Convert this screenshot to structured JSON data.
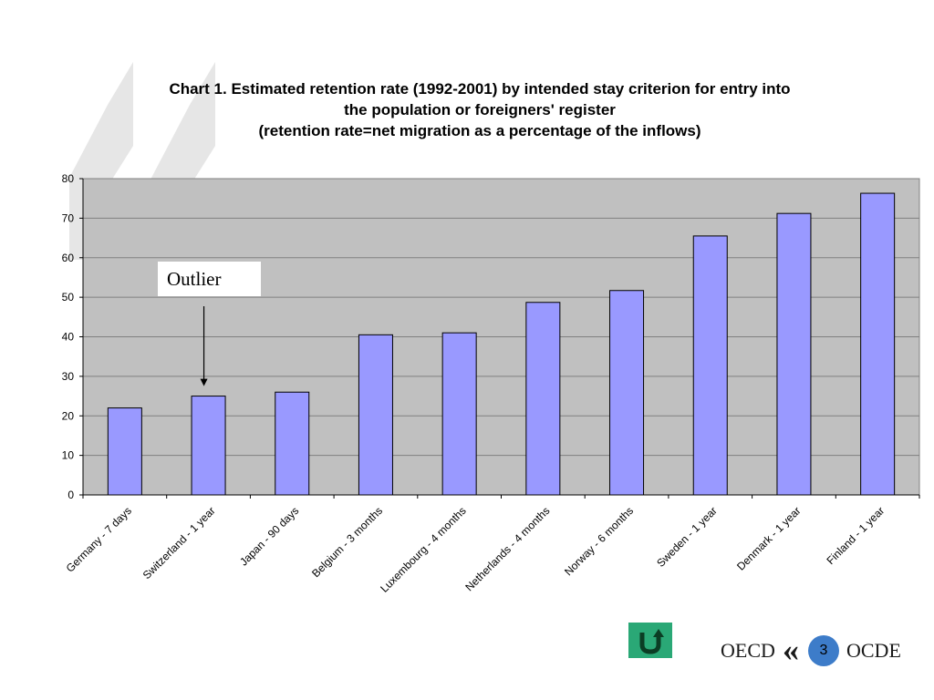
{
  "title_lines": [
    "Chart 1. Estimated retention rate (1992-2001) by intended stay criterion for entry into",
    "the population or foreigners' register",
    "(retention rate=net migration as a percentage of the inflows)"
  ],
  "annotation": {
    "label": "Outlier",
    "points_to": "Switzerland - 1 year"
  },
  "footer": {
    "left_text": "OECD",
    "right_text": "OCDE",
    "page_number": "3",
    "logo_glyph": "«"
  },
  "icons": {
    "back_button": "u-turn-arrow-icon"
  },
  "colors": {
    "bar_fill": "#9999ff",
    "plot_bg": "#c0c0c0",
    "back_button": "#2aa876",
    "page_badge": "#3d7cc9"
  },
  "chart_data": {
    "type": "bar",
    "title": "Chart 1. Estimated retention rate (1992-2001) by intended stay criterion for entry into the population or foreigners' register (retention rate=net migration as a percentage of the inflows)",
    "categories": [
      "Germany - 7 days",
      "Switzerland - 1 year",
      "Japan - 90 days",
      "Belgium -  3 months",
      "Luxembourg - 4 months",
      "Netherlands - 4 months",
      "Norway - 6 months",
      "Sweden  - 1 year",
      "Denmark - 1 year",
      "Finland - 1 year"
    ],
    "values": [
      22,
      25,
      26,
      40.5,
      41,
      48.7,
      51.7,
      65.5,
      71.2,
      76.3
    ],
    "ylim": [
      0,
      80
    ],
    "yticks": [
      0,
      10,
      20,
      30,
      40,
      50,
      60,
      70,
      80
    ],
    "grid": true,
    "legend": "none"
  }
}
